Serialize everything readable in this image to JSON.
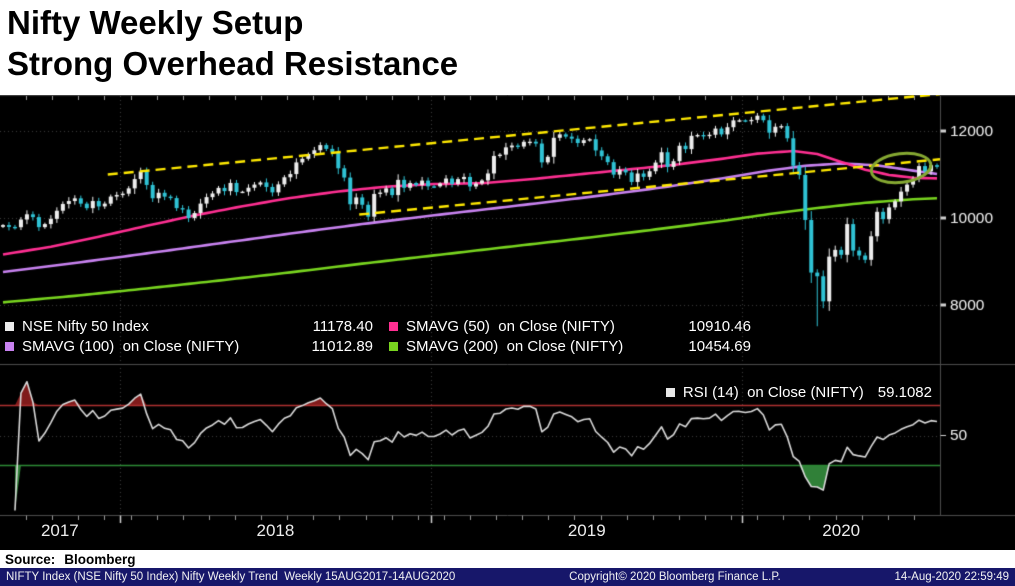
{
  "header": {
    "title_line1": "Nifty Weekly Setup",
    "title_line2": "Strong Overhead Resistance"
  },
  "source": {
    "label": "Source:",
    "value": "Bloomberg"
  },
  "footer": {
    "left": "NIFTY Index (NSE Nifty 50 Index) Nifty Weekly Trend  Weekly 15AUG2017-14AUG2020",
    "center": "Copyright© 2020 Bloomberg Finance L.P.",
    "right": "14-Aug-2020 22:59:49"
  },
  "legend": {
    "price": [
      {
        "name": "NSE Nifty 50 Index",
        "value": "11178.40",
        "color": "#ededed"
      },
      {
        "name": "SMAVG (50)  on Close (NIFTY)",
        "value": "10910.46",
        "color": "#ff2f92"
      },
      {
        "name": "SMAVG (100)  on Close (NIFTY)",
        "value": "11012.89",
        "color": "#c882f0"
      },
      {
        "name": "SMAVG (200)  on Close (NIFTY)",
        "value": "10454.69",
        "color": "#78d41f"
      }
    ],
    "rsi": {
      "name": "RSI (14)  on Close (NIFTY)",
      "value": "59.1082",
      "color": "#e8e8e8"
    }
  },
  "chart_data": {
    "type": "candlestick",
    "title": "Nifty Weekly Setup — Strong Overhead Resistance",
    "instrument": "NSE Nifty 50 Index",
    "period": "Weekly",
    "range": "15AUG2017-14AUG2020",
    "last_close": 11178.4,
    "ylim": [
      6643,
      12828
    ],
    "y_ticks": [
      12000,
      10000,
      8000
    ],
    "x_years": [
      {
        "label": "2017",
        "start_week": 0,
        "end_week": 20
      },
      {
        "label": "2018",
        "start_week": 20,
        "end_week": 72
      },
      {
        "label": "2019",
        "start_week": 72,
        "end_week": 124
      },
      {
        "label": "2020",
        "start_week": 124,
        "end_week": 157
      }
    ],
    "weekly_close": [
      9837,
      9795,
      9788,
      9965,
      10085,
      10020,
      9790,
      9860,
      9980,
      10167,
      10323,
      10390,
      10452,
      10330,
      10226,
      10390,
      10266,
      10330,
      10493,
      10530,
      10559,
      10681,
      10895,
      11070,
      10760,
      10454,
      10580,
      10491,
      10458,
      10227,
      10195,
      9998,
      10114,
      10331,
      10480,
      10564,
      10692,
      10618,
      10806,
      10596,
      10605,
      10696,
      10768,
      10818,
      10714,
      10589,
      10773,
      10936,
      11010,
      11278,
      11361,
      11471,
      11557,
      11676,
      11589,
      11515,
      11143,
      10930,
      10316,
      10473,
      10304,
      10030,
      10553,
      10585,
      10682,
      10527,
      10877,
      10694,
      10805,
      10754,
      10860,
      10728,
      10727,
      10795,
      10907,
      10781,
      10894,
      10944,
      10724,
      10792,
      10863,
      11024,
      11427,
      11457,
      11624,
      11666,
      11643,
      11752,
      11754,
      11712,
      11279,
      11407,
      11844,
      11923,
      11871,
      11823,
      11724,
      11789,
      11811,
      11553,
      11419,
      11284,
      10997,
      11110,
      11048,
      10829,
      11023,
      10946,
      11075,
      11274,
      11512,
      11174,
      11305,
      11661,
      11583,
      11890,
      11908,
      11895,
      11914,
      12056,
      11922,
      12087,
      12245,
      12246,
      12227,
      12257,
      12352,
      12248,
      11962,
      12098,
      12113,
      11833,
      11202,
      10989,
      9955,
      8745,
      8660,
      8084,
      9112,
      9267,
      9154,
      9860,
      9251,
      9137,
      9039,
      9580,
      10142,
      9973,
      10244,
      10383,
      10607,
      10768,
      10902,
      11194,
      11073,
      11214,
      11178
    ],
    "low_override": {
      "136": 7511
    },
    "smavg": [
      {
        "name": "SMAVG (50) on Close (NIFTY)",
        "color": "#ff2f92",
        "last": 10910.46,
        "anchors": [
          [
            0,
            9160
          ],
          [
            8,
            9340
          ],
          [
            16,
            9570
          ],
          [
            24,
            9820
          ],
          [
            32,
            10060
          ],
          [
            40,
            10270
          ],
          [
            48,
            10460
          ],
          [
            56,
            10610
          ],
          [
            64,
            10720
          ],
          [
            72,
            10780
          ],
          [
            80,
            10800
          ],
          [
            88,
            10890
          ],
          [
            96,
            11000
          ],
          [
            104,
            11110
          ],
          [
            112,
            11220
          ],
          [
            120,
            11360
          ],
          [
            126,
            11480
          ],
          [
            132,
            11540
          ],
          [
            136,
            11470
          ],
          [
            140,
            11290
          ],
          [
            144,
            11110
          ],
          [
            148,
            10990
          ],
          [
            152,
            10925
          ],
          [
            156,
            10910
          ]
        ]
      },
      {
        "name": "SMAVG (100) on Close (NIFTY)",
        "color": "#c882f0",
        "last": 11012.89,
        "anchors": [
          [
            0,
            8760
          ],
          [
            10,
            8930
          ],
          [
            20,
            9110
          ],
          [
            30,
            9300
          ],
          [
            40,
            9490
          ],
          [
            50,
            9680
          ],
          [
            60,
            9860
          ],
          [
            70,
            10030
          ],
          [
            80,
            10190
          ],
          [
            90,
            10350
          ],
          [
            100,
            10520
          ],
          [
            110,
            10700
          ],
          [
            120,
            10910
          ],
          [
            128,
            11090
          ],
          [
            134,
            11200
          ],
          [
            140,
            11255
          ],
          [
            146,
            11210
          ],
          [
            152,
            11090
          ],
          [
            156,
            11013
          ]
        ]
      },
      {
        "name": "SMAVG (200) on Close (NIFTY)",
        "color": "#78d41f",
        "last": 10454.69,
        "anchors": [
          [
            0,
            8060
          ],
          [
            12,
            8210
          ],
          [
            24,
            8380
          ],
          [
            36,
            8560
          ],
          [
            48,
            8750
          ],
          [
            60,
            8950
          ],
          [
            72,
            9140
          ],
          [
            84,
            9330
          ],
          [
            96,
            9520
          ],
          [
            108,
            9720
          ],
          [
            120,
            9930
          ],
          [
            128,
            10090
          ],
          [
            136,
            10230
          ],
          [
            144,
            10350
          ],
          [
            152,
            10430
          ],
          [
            156,
            10455
          ]
        ]
      }
    ],
    "trend_channel": {
      "color": "#ffe900",
      "upper": [
        [
          18,
          11000
        ],
        [
          157,
          12850
        ]
      ],
      "lower": [
        [
          60,
          10080
        ],
        [
          157,
          11350
        ]
      ]
    },
    "highlight_ellipse": {
      "center_week": 150.5,
      "center_price": 11150,
      "rx_weeks": 5,
      "ry_price": 330,
      "color": "#85a832"
    },
    "rsi_panel": {
      "period": 14,
      "last": 59.1082,
      "overbought": 70,
      "oversold": 30,
      "axis_tick": 50,
      "ylim": [
        -3,
        97
      ],
      "line_color": "#d9d9d9",
      "overbought_line_color": "#b03030",
      "oversold_line_color": "#2c8a36",
      "overbought_fill": "rgba(150,32,32,0.85)",
      "oversold_fill": "rgba(56,150,66,0.85)"
    },
    "colors": {
      "up": "#ededed",
      "down": "#2fc2d4",
      "grid": "#3c3c3c",
      "border": "#4c4c4c",
      "axis_text": "#f2f2f2"
    }
  }
}
